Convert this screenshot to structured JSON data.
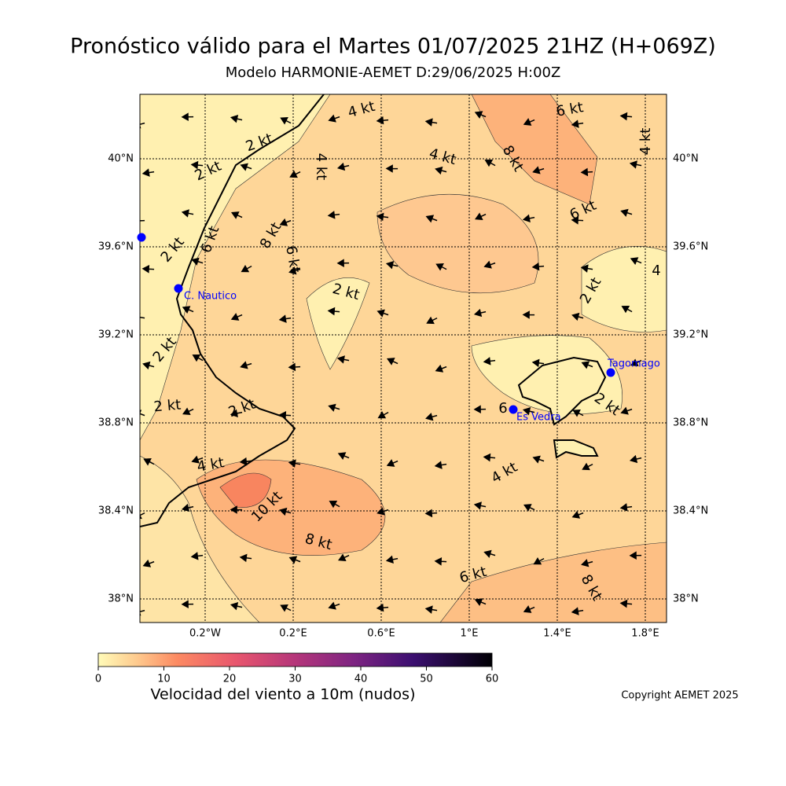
{
  "header": {
    "title": "Pronóstico válido para el Martes 01/07/2025 21HZ (H+069Z)",
    "subtitle": "Modelo HARMONIE-AEMET D:29/06/2025 H:00Z"
  },
  "map": {
    "lat_labels": [
      "40°N",
      "39.6°N",
      "39.2°N",
      "38.8°N",
      "38.4°N",
      "38°N"
    ],
    "lon_labels": [
      "0.2°W",
      "0.2°E",
      "0.6°E",
      "1°E",
      "1.4°E",
      "1.8°E"
    ],
    "stations": [
      "C. Nautico",
      "Tagomago",
      "Es Vedra"
    ],
    "contour_labels": [
      "4 kt",
      "6 kt",
      "2 kt",
      "4 kt",
      "8 kt",
      "2 kt",
      "4 kt",
      "6 kt",
      "4 kt",
      "6 kt",
      "2 kt",
      "8 kt",
      "6 kt",
      "2 kt",
      "2 kt",
      "4",
      "2 kt",
      "2 kt",
      "2 kt",
      "6",
      "2 kt",
      "4 kt",
      "4 kt",
      "10 kt",
      "8 kt",
      "6 kt",
      "8 kt"
    ]
  },
  "colorbar": {
    "ticks": [
      0,
      10,
      20,
      30,
      40,
      50,
      60
    ],
    "label": "Velocidad del viento a 10m (nudos)"
  },
  "footer": {
    "copyright": "Copyright AEMET 2025"
  }
}
